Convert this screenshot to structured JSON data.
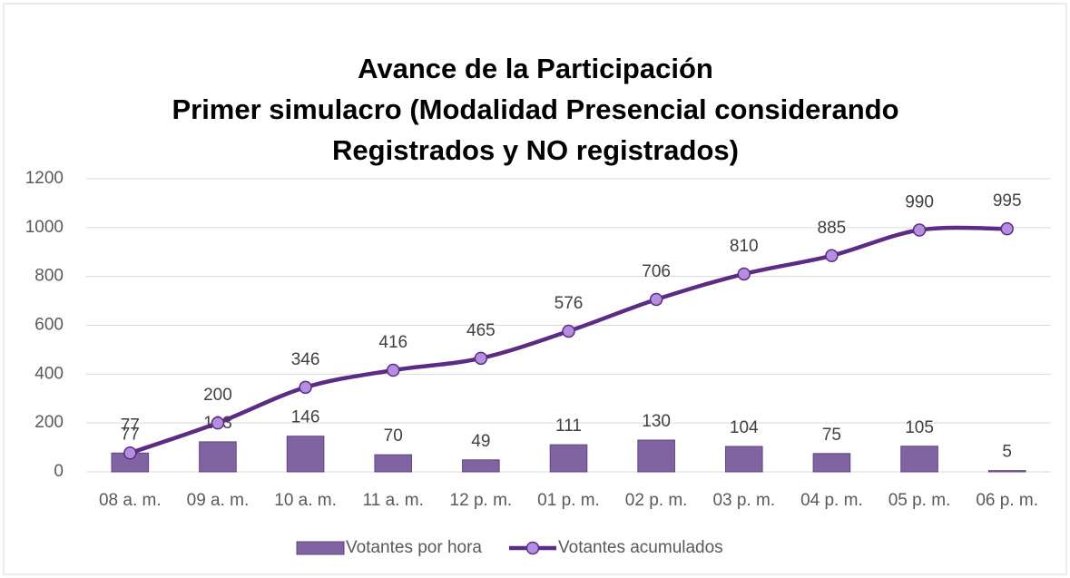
{
  "chart_data": {
    "type": "combo",
    "title": [
      "Avance de la Participación",
      "Primer simulacro (Modalidad Presencial considerando",
      "Registrados y NO registrados)"
    ],
    "categories": [
      "08 a. m.",
      "09 a. m.",
      "10 a. m.",
      "11 a. m.",
      "12 p. m.",
      "01 p. m.",
      "02 p. m.",
      "03 p. m.",
      "04 p. m.",
      "05 p. m.",
      "06 p. m."
    ],
    "series": [
      {
        "name": "Votantes por hora",
        "type": "bar",
        "color": "#8064a2",
        "values": [
          77,
          123,
          146,
          70,
          49,
          111,
          130,
          104,
          75,
          105,
          5
        ]
      },
      {
        "name": "Votantes acumulados",
        "type": "line",
        "color": "#5b2c83",
        "values": [
          77,
          200,
          346,
          416,
          465,
          576,
          706,
          810,
          885,
          990,
          995
        ]
      }
    ],
    "ylim": [
      0,
      1200
    ],
    "yticks": [
      0,
      200,
      400,
      600,
      800,
      1000,
      1200
    ],
    "grid": true,
    "legend": "bottom"
  }
}
